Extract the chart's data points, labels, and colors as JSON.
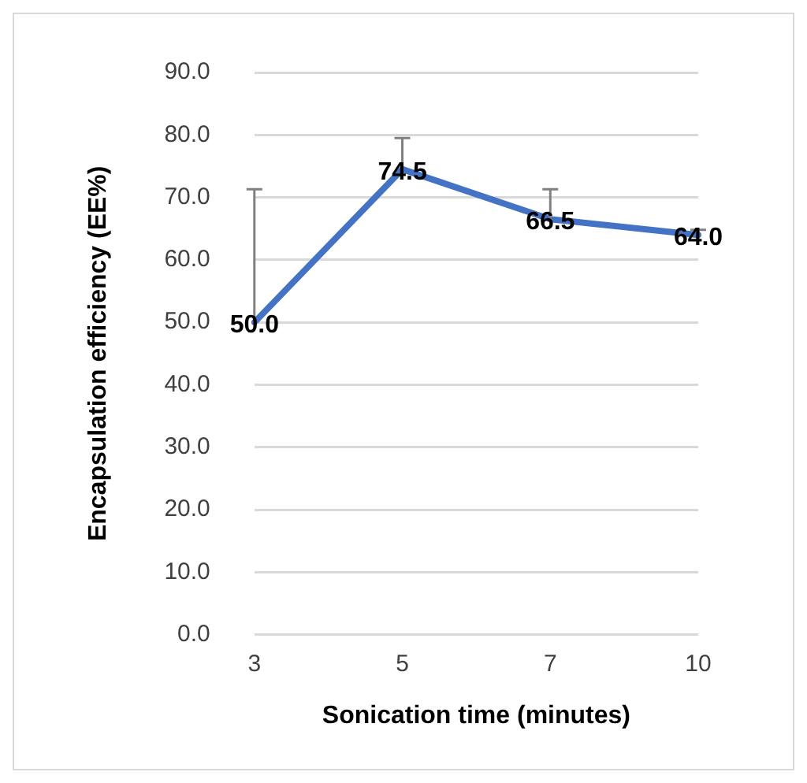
{
  "chart_data": {
    "type": "line",
    "xlabel": "Sonication time (minutes)",
    "ylabel": "Encapsulation efficiency (EE%)",
    "categories": [
      "3",
      "5",
      "7",
      "10"
    ],
    "series": [
      {
        "color": "#4472c4",
        "values": [
          50.0,
          74.5,
          66.5,
          64.0
        ],
        "errors": [
          [
            50.0,
            71.3
          ],
          [
            74.5,
            79.5
          ],
          [
            66.5,
            71.3
          ],
          [
            64.0,
            64.8
          ]
        ],
        "value_labels": [
          "50.0",
          "74.5",
          "66.5",
          "64.0"
        ]
      }
    ],
    "ylim": [
      0,
      90
    ],
    "yticks": [
      {
        "value": 0,
        "label": "0.0"
      },
      {
        "value": 10,
        "label": "10.0"
      },
      {
        "value": 20,
        "label": "20.0"
      },
      {
        "value": 30,
        "label": "30.0"
      },
      {
        "value": 40,
        "label": "40.0"
      },
      {
        "value": 50,
        "label": "50.0"
      },
      {
        "value": 60,
        "label": "60.0"
      },
      {
        "value": 70,
        "label": "70.0"
      },
      {
        "value": 80,
        "label": "80.0"
      },
      {
        "value": 90,
        "label": "90.0"
      }
    ],
    "grid": "y",
    "legend": false,
    "marker": "none",
    "line_style": "solid"
  }
}
